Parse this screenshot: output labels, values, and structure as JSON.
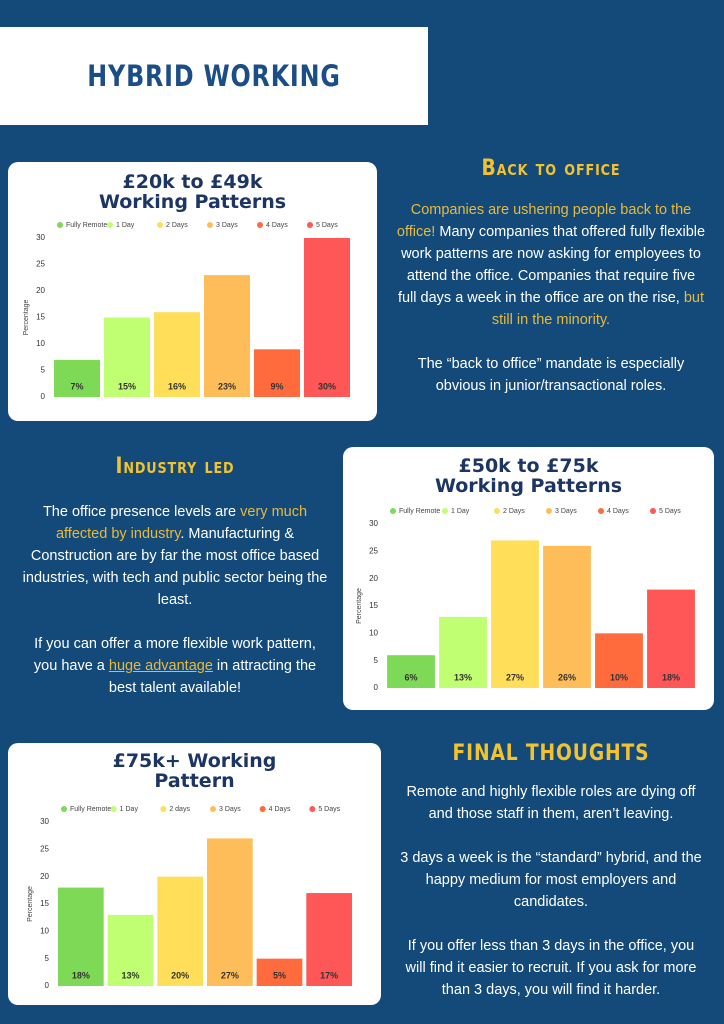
{
  "header": {
    "title": "HYBRID WORKING"
  },
  "sections": [
    {
      "heading": "Back to office",
      "paragraphs": [
        [
          {
            "text": "Companies are ushering people back to the office!",
            "color": "#e9b93a"
          },
          {
            "text": " Many companies that offered fully flexible work patterns are now asking for employees to attend the office. Companies that require five full days a week in the office are on the rise, "
          },
          {
            "text": "but still in the minority.",
            "color": "#e9b93a"
          }
        ],
        [
          {
            "text": "The “back to office” mandate is especially obvious in junior/transactional roles."
          }
        ]
      ]
    },
    {
      "heading": "Industry led",
      "paragraphs": [
        [
          {
            "text": "The office  presence levels are "
          },
          {
            "text": "very much affected by industry",
            "color": "#e9b93a"
          },
          {
            "text": ". Manufacturing & Construction are by far the most office based industries, with tech and public sector being the least."
          }
        ],
        [
          {
            "text": "If you can offer a more flexible work pattern, you have a "
          },
          {
            "text": "huge advantage",
            "color": "#e9b93a",
            "underline": true
          },
          {
            "text": " in attracting the best talent available!"
          }
        ]
      ]
    },
    {
      "heading": "FINAL THOUGHTS",
      "paragraphs": [
        [
          {
            "text": "Remote and highly flexible roles are dying off and those staff in them, aren’t leaving."
          }
        ],
        [
          {
            "text": "3 days a week is the “standard” hybrid, and the happy medium for most employers and candidates."
          }
        ],
        [
          {
            "text": "If you offer less than 3 days in the office, you will find it easier to recruit. If you ask for more than 3 days, you will find it harder."
          }
        ]
      ]
    }
  ],
  "chart_data": [
    {
      "type": "bar",
      "title": "£20k to £49k Working Patterns",
      "categories": [
        "Fully Remote",
        "1 Day",
        "2 Days",
        "3 Days",
        "4 Days",
        "5 Days"
      ],
      "values": [
        7,
        15,
        16,
        23,
        9,
        30
      ],
      "value_labels": [
        "7%",
        "15%",
        "16%",
        "23%",
        "9%",
        "30%"
      ],
      "colors": [
        "#7ed957",
        "#c1ff72",
        "#ffde59",
        "#ffbd59",
        "#ff6b3d",
        "#ff5757"
      ],
      "ylabel": "Percentage",
      "ylim": [
        0,
        30
      ],
      "yticks": [
        0,
        5,
        10,
        15,
        20,
        25,
        30
      ]
    },
    {
      "type": "bar",
      "title": "£50k to £75k Working Patterns",
      "categories": [
        "Fully Remote",
        "1 Day",
        "2 Days",
        "3 Days",
        "4 Days",
        "5 Days"
      ],
      "values": [
        6,
        13,
        27,
        26,
        10,
        18
      ],
      "value_labels": [
        "6%",
        "13%",
        "27%",
        "26%",
        "10%",
        "18%"
      ],
      "colors": [
        "#7ed957",
        "#c1ff72",
        "#ffde59",
        "#ffbd59",
        "#ff6b3d",
        "#ff5757"
      ],
      "ylabel": "Percentage",
      "ylim": [
        0,
        30
      ],
      "yticks": [
        0,
        5,
        10,
        15,
        20,
        25,
        30
      ]
    },
    {
      "type": "bar",
      "title": "£75k+ Working Pattern",
      "categories": [
        "Fully Remote",
        "1 Day",
        "2 days",
        "3 Days",
        "4 Days",
        "5 Days"
      ],
      "values": [
        18,
        13,
        20,
        27,
        5,
        17
      ],
      "value_labels": [
        "18%",
        "13%",
        "20%",
        "27%",
        "5%",
        "17%"
      ],
      "colors": [
        "#7ed957",
        "#c1ff72",
        "#ffde59",
        "#ffbd59",
        "#ff6b3d",
        "#ff5757"
      ],
      "ylabel": "Percentage",
      "ylim": [
        0,
        30
      ],
      "yticks": [
        0,
        5,
        10,
        15,
        20,
        25,
        30
      ]
    }
  ]
}
